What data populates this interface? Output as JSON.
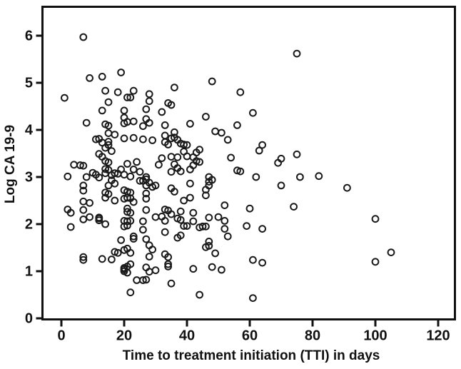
{
  "figure": {
    "type_label": "scatterplot"
  },
  "chart_data": {
    "type": "scatter",
    "title": "",
    "xlabel": "Time to treatment initiation (TTI) in days",
    "ylabel": "Log CA 19-9",
    "xlim": [
      -6,
      126
    ],
    "ylim": [
      0,
      6.6
    ],
    "xticks": [
      0,
      20,
      40,
      60,
      80,
      100,
      120
    ],
    "yticks": [
      0,
      1,
      2,
      3,
      4,
      5,
      6
    ],
    "grid": false,
    "legend": "none",
    "marker": {
      "shape": "open-circle",
      "stroke_color": "#1a1a1a",
      "fill": "none"
    },
    "axis_color": "#111111",
    "background_color": "#ffffff",
    "points": [
      [
        7,
        5.97
      ],
      [
        75,
        5.62
      ],
      [
        19,
        5.22
      ],
      [
        13,
        5.13
      ],
      [
        9,
        5.1
      ],
      [
        48,
        5.03
      ],
      [
        36,
        4.9
      ],
      [
        14,
        4.83
      ],
      [
        23,
        4.83
      ],
      [
        18,
        4.8
      ],
      [
        57,
        4.8
      ],
      [
        28,
        4.76
      ],
      [
        21,
        4.69
      ],
      [
        22,
        4.69
      ],
      [
        1,
        4.68
      ],
      [
        28,
        4.61
      ],
      [
        15,
        4.59
      ],
      [
        34,
        4.57
      ],
      [
        35,
        4.53
      ],
      [
        27,
        4.44
      ],
      [
        13,
        4.41
      ],
      [
        20,
        4.41
      ],
      [
        32,
        4.38
      ],
      [
        61,
        4.36
      ],
      [
        46,
        4.28
      ],
      [
        20,
        4.26
      ],
      [
        27,
        4.23
      ],
      [
        23,
        4.18
      ],
      [
        21,
        4.17
      ],
      [
        8,
        4.15
      ],
      [
        28,
        4.15
      ],
      [
        20,
        4.14
      ],
      [
        41,
        4.13
      ],
      [
        14,
        4.12
      ],
      [
        33,
        4.1
      ],
      [
        56,
        4.1
      ],
      [
        15,
        4.09
      ],
      [
        26,
        4.08
      ],
      [
        49,
        3.97
      ],
      [
        36,
        3.95
      ],
      [
        51,
        3.94
      ],
      [
        15,
        3.93
      ],
      [
        17,
        3.9
      ],
      [
        33,
        3.88
      ],
      [
        36,
        3.84
      ],
      [
        23,
        3.83
      ],
      [
        20,
        3.82
      ],
      [
        35,
        3.82
      ],
      [
        12,
        3.81
      ],
      [
        11,
        3.8
      ],
      [
        26,
        3.8
      ],
      [
        37,
        3.79
      ],
      [
        53,
        3.79
      ],
      [
        29,
        3.78
      ],
      [
        15,
        3.75
      ],
      [
        33,
        3.74
      ],
      [
        13,
        3.73
      ],
      [
        38,
        3.71
      ],
      [
        34,
        3.69
      ],
      [
        39,
        3.69
      ],
      [
        15,
        3.68
      ],
      [
        40,
        3.68
      ],
      [
        64,
        3.68
      ],
      [
        14,
        3.62
      ],
      [
        44,
        3.58
      ],
      [
        63,
        3.56
      ],
      [
        16,
        3.55
      ],
      [
        39,
        3.54
      ],
      [
        43,
        3.52
      ],
      [
        12,
        3.49
      ],
      [
        75,
        3.48
      ],
      [
        40,
        3.44
      ],
      [
        13,
        3.43
      ],
      [
        35,
        3.43
      ],
      [
        37,
        3.42
      ],
      [
        42,
        3.42
      ],
      [
        54,
        3.41
      ],
      [
        32,
        3.4
      ],
      [
        70,
        3.39
      ],
      [
        14,
        3.34
      ],
      [
        43,
        3.34
      ],
      [
        24,
        3.32
      ],
      [
        44,
        3.32
      ],
      [
        15,
        3.31
      ],
      [
        69,
        3.3
      ],
      [
        21,
        3.28
      ],
      [
        36,
        3.27
      ],
      [
        4,
        3.26
      ],
      [
        31,
        3.26
      ],
      [
        6,
        3.25
      ],
      [
        42,
        3.25
      ],
      [
        7,
        3.24
      ],
      [
        37,
        3.19
      ],
      [
        14,
        3.17
      ],
      [
        19,
        3.16
      ],
      [
        23,
        3.16
      ],
      [
        41,
        3.16
      ],
      [
        15,
        3.15
      ],
      [
        56,
        3.14
      ],
      [
        38,
        3.12
      ],
      [
        57,
        3.12
      ],
      [
        25,
        3.11
      ],
      [
        35,
        3.11
      ],
      [
        10,
        3.09
      ],
      [
        17,
        3.08
      ],
      [
        14,
        3.08
      ],
      [
        18,
        3.07
      ],
      [
        11,
        3.05
      ],
      [
        20,
        3.05
      ],
      [
        16,
        3.04
      ],
      [
        82,
        3.02
      ],
      [
        2,
        3.01
      ],
      [
        22,
        3.01
      ],
      [
        8,
        3.0
      ],
      [
        27,
        3.0
      ],
      [
        47,
        3.0
      ],
      [
        62,
        3.0
      ],
      [
        76,
        3.0
      ],
      [
        12,
        2.99
      ],
      [
        27,
        2.95
      ],
      [
        48,
        2.94
      ],
      [
        16,
        2.93
      ],
      [
        26,
        2.92
      ],
      [
        25,
        2.92
      ],
      [
        47,
        2.9
      ],
      [
        28,
        2.88
      ],
      [
        17,
        2.86
      ],
      [
        41,
        2.86
      ],
      [
        30,
        2.82
      ],
      [
        7,
        2.82
      ],
      [
        47,
        2.82
      ],
      [
        70,
        2.82
      ],
      [
        15,
        2.82
      ],
      [
        27,
        2.82
      ],
      [
        29,
        2.79
      ],
      [
        91,
        2.77
      ],
      [
        35,
        2.76
      ],
      [
        46,
        2.73
      ],
      [
        20,
        2.72
      ],
      [
        7,
        2.71
      ],
      [
        21,
        2.69
      ],
      [
        36,
        2.69
      ],
      [
        14,
        2.67
      ],
      [
        22,
        2.67
      ],
      [
        27,
        2.65
      ],
      [
        15,
        2.64
      ],
      [
        46,
        2.61
      ],
      [
        14,
        2.56
      ],
      [
        21,
        2.56
      ],
      [
        41,
        2.56
      ],
      [
        22,
        2.55
      ],
      [
        20,
        2.54
      ],
      [
        27,
        2.54
      ],
      [
        17,
        2.5
      ],
      [
        39,
        2.5
      ],
      [
        7,
        2.48
      ],
      [
        23,
        2.47
      ],
      [
        9,
        2.45
      ],
      [
        52,
        2.4
      ],
      [
        74,
        2.37
      ],
      [
        2,
        2.31
      ],
      [
        33,
        2.31
      ],
      [
        7,
        2.3
      ],
      [
        27,
        2.3
      ],
      [
        34,
        2.29
      ],
      [
        38,
        2.27
      ],
      [
        21,
        2.26
      ],
      [
        42,
        2.24
      ],
      [
        3,
        2.24
      ],
      [
        22,
        2.24
      ],
      [
        21,
        2.33
      ],
      [
        60,
        2.33
      ],
      [
        35,
        2.21
      ],
      [
        30,
        2.15
      ],
      [
        9,
        2.15
      ],
      [
        50,
        2.15
      ],
      [
        12,
        2.14
      ],
      [
        47,
        2.14
      ],
      [
        37,
        2.12
      ],
      [
        12,
        2.12
      ],
      [
        100,
        2.11
      ],
      [
        7,
        2.1
      ],
      [
        38,
        2.09
      ],
      [
        12,
        2.08
      ],
      [
        20,
        2.07
      ],
      [
        22,
        2.07
      ],
      [
        33,
        2.07
      ],
      [
        52,
        2.07
      ],
      [
        21,
        2.06
      ],
      [
        26,
        2.06
      ],
      [
        42,
        2.06
      ],
      [
        32,
        2.16
      ],
      [
        14,
        2.0
      ],
      [
        21,
        1.97
      ],
      [
        39,
        1.96
      ],
      [
        59,
        1.96
      ],
      [
        20,
        1.95
      ],
      [
        45,
        1.95
      ],
      [
        40,
        1.96
      ],
      [
        46,
        1.95
      ],
      [
        3,
        1.94
      ],
      [
        44,
        1.93
      ],
      [
        52,
        1.9
      ],
      [
        64,
        1.9
      ],
      [
        26,
        1.88
      ],
      [
        33,
        1.83
      ],
      [
        38,
        1.76
      ],
      [
        23,
        1.74
      ],
      [
        53,
        1.74
      ],
      [
        37,
        1.71
      ],
      [
        23,
        1.69
      ],
      [
        27,
        1.68
      ],
      [
        19,
        1.66
      ],
      [
        47,
        1.63
      ],
      [
        28,
        1.55
      ],
      [
        47,
        1.54
      ],
      [
        46,
        1.51
      ],
      [
        21,
        1.48
      ],
      [
        29,
        1.46
      ],
      [
        20,
        1.45
      ],
      [
        17,
        1.41
      ],
      [
        105,
        1.4
      ],
      [
        18,
        1.39
      ],
      [
        22,
        1.39
      ],
      [
        49,
        1.38
      ],
      [
        33,
        1.36
      ],
      [
        28,
        1.31
      ],
      [
        7,
        1.3
      ],
      [
        34,
        1.3
      ],
      [
        13,
        1.26
      ],
      [
        16,
        1.25
      ],
      [
        61,
        1.24
      ],
      [
        7,
        1.24
      ],
      [
        100,
        1.2
      ],
      [
        64,
        1.18
      ],
      [
        34,
        1.15
      ],
      [
        22,
        1.15
      ],
      [
        34,
        1.1
      ],
      [
        21,
        1.1
      ],
      [
        48,
        1.09
      ],
      [
        27,
        1.08
      ],
      [
        20,
        1.07
      ],
      [
        42,
        1.05
      ],
      [
        20,
        1.04
      ],
      [
        51,
        1.03
      ],
      [
        30,
        1.02
      ],
      [
        20,
        1.0
      ],
      [
        28,
        0.99
      ],
      [
        21,
        0.97
      ],
      [
        24,
        0.81
      ],
      [
        26,
        0.81
      ],
      [
        27,
        0.82
      ],
      [
        35,
        0.74
      ],
      [
        22,
        0.55
      ],
      [
        44,
        0.5
      ],
      [
        61,
        0.43
      ]
    ]
  }
}
